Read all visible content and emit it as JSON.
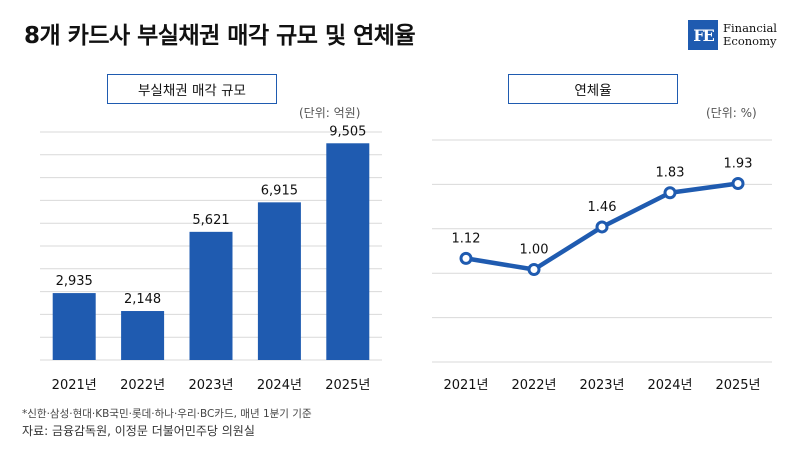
{
  "title": "8개 카드사 부실채권 매각 규모 및 연체율",
  "logo": {
    "mark": "FE",
    "line1": "Financial",
    "line2": "Economy"
  },
  "colors": {
    "accent": "#1f5bb0",
    "grid": "#d9d9d9"
  },
  "chart_data": [
    {
      "type": "bar",
      "title": "부실채권 매각 규모",
      "unit": "(단위: 억원)",
      "categories": [
        "2021년",
        "2022년",
        "2023년",
        "2024년",
        "2025년"
      ],
      "values": [
        2935,
        2148,
        5621,
        6915,
        9505
      ],
      "value_labels": [
        "2,935",
        "2,148",
        "5,621",
        "6,915",
        "9,505"
      ],
      "ylim": [
        0,
        10000
      ],
      "grid": true
    },
    {
      "type": "line",
      "title": "연체율",
      "unit": "(단위: %)",
      "categories": [
        "2021년",
        "2022년",
        "2023년",
        "2024년",
        "2025년"
      ],
      "values": [
        1.12,
        1.0,
        1.46,
        1.83,
        1.93
      ],
      "value_labels": [
        "1.12",
        "1.00",
        "1.46",
        "1.83",
        "1.93"
      ],
      "ylim": [
        0.0,
        2.4
      ],
      "grid": true
    }
  ],
  "footnote": "*신한·삼성·현대·KB국민·롯데·하나·우리·BC카드, 매년 1분기 기준",
  "source": "자료:  금융감독원, 이정문 더불어민주당 의원실"
}
